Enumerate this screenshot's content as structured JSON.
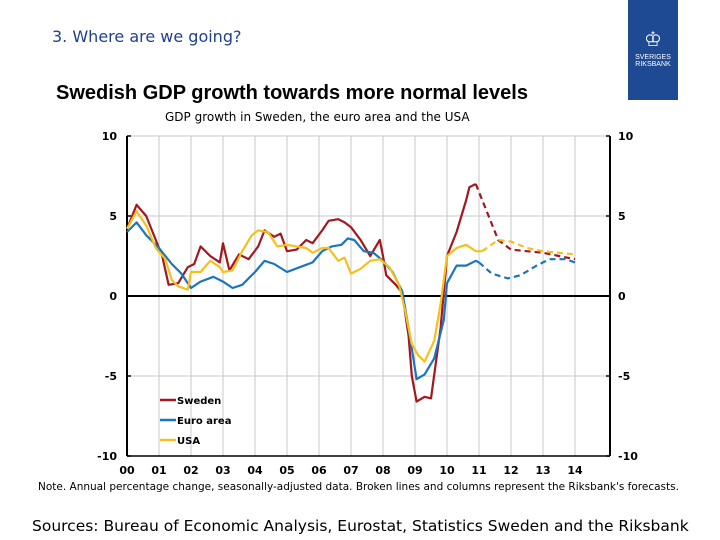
{
  "header": {
    "section": "3. Where are we going?",
    "title": "Swedish GDP growth towards more normal levels",
    "subtitle": "GDP growth in Sweden, the euro area and the USA"
  },
  "logo": {
    "text_line1": "SVERIGES",
    "text_line2": "RIKSBANK",
    "color": "#1d4a93"
  },
  "note": "Note. Annual percentage change, seasonally-adjusted data. Broken lines and columns represent the Riksbank's forecasts.",
  "sources": "Sources: Bureau of Economic Analysis, Eurostat, Statistics Sweden and the Riksbank",
  "chart_data": {
    "type": "line",
    "ylim": [
      -10,
      10
    ],
    "yticks": [
      "10",
      "5",
      "0",
      "-5",
      "-10"
    ],
    "xticks": [
      "00",
      "01",
      "02",
      "03",
      "04",
      "05",
      "06",
      "07",
      "08",
      "09",
      "10",
      "11",
      "12",
      "13",
      "14"
    ],
    "grid": true,
    "legend": "bottom-left",
    "series": [
      {
        "name": "Sweden",
        "color": "#a3171f",
        "actual": [
          [
            0,
            4.2
          ],
          [
            0.3,
            5.7
          ],
          [
            0.6,
            5.0
          ],
          [
            0.9,
            3.5
          ],
          [
            1.1,
            2.5
          ],
          [
            1.3,
            0.7
          ],
          [
            1.6,
            0.8
          ],
          [
            1.9,
            1.8
          ],
          [
            2.1,
            2.0
          ],
          [
            2.3,
            3.1
          ],
          [
            2.6,
            2.5
          ],
          [
            2.9,
            2.1
          ],
          [
            3.0,
            3.3
          ],
          [
            3.2,
            1.6
          ],
          [
            3.5,
            2.6
          ],
          [
            3.8,
            2.3
          ],
          [
            4.1,
            3.1
          ],
          [
            4.3,
            4.1
          ],
          [
            4.6,
            3.7
          ],
          [
            4.8,
            3.9
          ],
          [
            5.0,
            2.8
          ],
          [
            5.3,
            2.9
          ],
          [
            5.6,
            3.5
          ],
          [
            5.8,
            3.3
          ],
          [
            6.1,
            4.1
          ],
          [
            6.3,
            4.7
          ],
          [
            6.6,
            4.8
          ],
          [
            6.8,
            4.6
          ],
          [
            7.0,
            4.3
          ],
          [
            7.3,
            3.5
          ],
          [
            7.6,
            2.5
          ],
          [
            7.9,
            3.5
          ],
          [
            8.0,
            2.5
          ],
          [
            8.1,
            1.3
          ],
          [
            8.4,
            0.7
          ],
          [
            8.6,
            0.2
          ],
          [
            8.8,
            -2.5
          ],
          [
            8.9,
            -5.0
          ],
          [
            9.05,
            -6.6
          ],
          [
            9.3,
            -6.3
          ],
          [
            9.5,
            -6.4
          ],
          [
            9.8,
            -2.0
          ],
          [
            10.0,
            2.5
          ],
          [
            10.3,
            4.0
          ],
          [
            10.6,
            6.0
          ],
          [
            10.7,
            6.8
          ],
          [
            10.9,
            7.0
          ]
        ],
        "forecast": [
          [
            10.9,
            7.0
          ],
          [
            11.2,
            5.5
          ],
          [
            11.6,
            3.5
          ],
          [
            12.0,
            2.9
          ],
          [
            12.5,
            2.8
          ],
          [
            13.0,
            2.7
          ],
          [
            13.5,
            2.5
          ],
          [
            14.0,
            2.3
          ]
        ]
      },
      {
        "name": "Euro area",
        "color": "#1a75bc",
        "actual": [
          [
            0,
            4.0
          ],
          [
            0.3,
            4.6
          ],
          [
            0.6,
            3.8
          ],
          [
            1.0,
            3.0
          ],
          [
            1.4,
            2.0
          ],
          [
            1.7,
            1.4
          ],
          [
            2.0,
            0.5
          ],
          [
            2.3,
            0.9
          ],
          [
            2.7,
            1.2
          ],
          [
            3.0,
            0.9
          ],
          [
            3.3,
            0.5
          ],
          [
            3.6,
            0.7
          ],
          [
            4.0,
            1.5
          ],
          [
            4.3,
            2.2
          ],
          [
            4.6,
            2.0
          ],
          [
            5.0,
            1.5
          ],
          [
            5.4,
            1.8
          ],
          [
            5.8,
            2.1
          ],
          [
            6.1,
            2.8
          ],
          [
            6.4,
            3.1
          ],
          [
            6.7,
            3.2
          ],
          [
            6.9,
            3.6
          ],
          [
            7.1,
            3.5
          ],
          [
            7.4,
            2.8
          ],
          [
            7.7,
            2.7
          ],
          [
            8.0,
            2.2
          ],
          [
            8.3,
            1.5
          ],
          [
            8.6,
            0.3
          ],
          [
            8.8,
            -2.0
          ],
          [
            9.05,
            -5.2
          ],
          [
            9.3,
            -4.9
          ],
          [
            9.6,
            -3.9
          ],
          [
            9.9,
            -1.5
          ],
          [
            10.0,
            0.8
          ],
          [
            10.3,
            1.9
          ],
          [
            10.6,
            1.9
          ],
          [
            10.9,
            2.2
          ],
          [
            11.0,
            2.1
          ]
        ],
        "forecast": [
          [
            11.0,
            2.1
          ],
          [
            11.4,
            1.4
          ],
          [
            11.9,
            1.1
          ],
          [
            12.3,
            1.3
          ],
          [
            12.8,
            1.9
          ],
          [
            13.2,
            2.3
          ],
          [
            13.7,
            2.3
          ],
          [
            14.0,
            2.1
          ]
        ]
      },
      {
        "name": "USA",
        "color": "#f5c01b",
        "actual": [
          [
            0,
            4.2
          ],
          [
            0.3,
            5.3
          ],
          [
            0.6,
            4.4
          ],
          [
            0.9,
            3.0
          ],
          [
            1.2,
            2.3
          ],
          [
            1.4,
            1.0
          ],
          [
            1.6,
            0.6
          ],
          [
            1.9,
            0.4
          ],
          [
            2.0,
            1.5
          ],
          [
            2.3,
            1.5
          ],
          [
            2.6,
            2.2
          ],
          [
            2.9,
            1.8
          ],
          [
            3.0,
            1.5
          ],
          [
            3.3,
            1.6
          ],
          [
            3.6,
            2.8
          ],
          [
            3.9,
            3.8
          ],
          [
            4.1,
            4.1
          ],
          [
            4.4,
            4.0
          ],
          [
            4.7,
            3.1
          ],
          [
            5.0,
            3.2
          ],
          [
            5.3,
            3.1
          ],
          [
            5.6,
            3.0
          ],
          [
            5.8,
            2.7
          ],
          [
            6.1,
            3.0
          ],
          [
            6.3,
            3.0
          ],
          [
            6.6,
            2.2
          ],
          [
            6.8,
            2.4
          ],
          [
            7.0,
            1.4
          ],
          [
            7.3,
            1.7
          ],
          [
            7.6,
            2.2
          ],
          [
            7.9,
            2.3
          ],
          [
            8.2,
            1.8
          ],
          [
            8.5,
            0.7
          ],
          [
            8.7,
            -1.0
          ],
          [
            8.9,
            -3.0
          ],
          [
            9.1,
            -3.7
          ],
          [
            9.3,
            -4.1
          ],
          [
            9.6,
            -2.8
          ],
          [
            9.8,
            -0.5
          ],
          [
            10.0,
            2.5
          ],
          [
            10.3,
            3.0
          ],
          [
            10.6,
            3.2
          ],
          [
            10.9,
            2.8
          ],
          [
            11.1,
            2.8
          ]
        ],
        "forecast": [
          [
            11.1,
            2.8
          ],
          [
            11.6,
            3.5
          ],
          [
            12.0,
            3.4
          ],
          [
            12.5,
            3.0
          ],
          [
            13.0,
            2.8
          ],
          [
            13.5,
            2.7
          ],
          [
            14.0,
            2.6
          ]
        ]
      }
    ]
  }
}
